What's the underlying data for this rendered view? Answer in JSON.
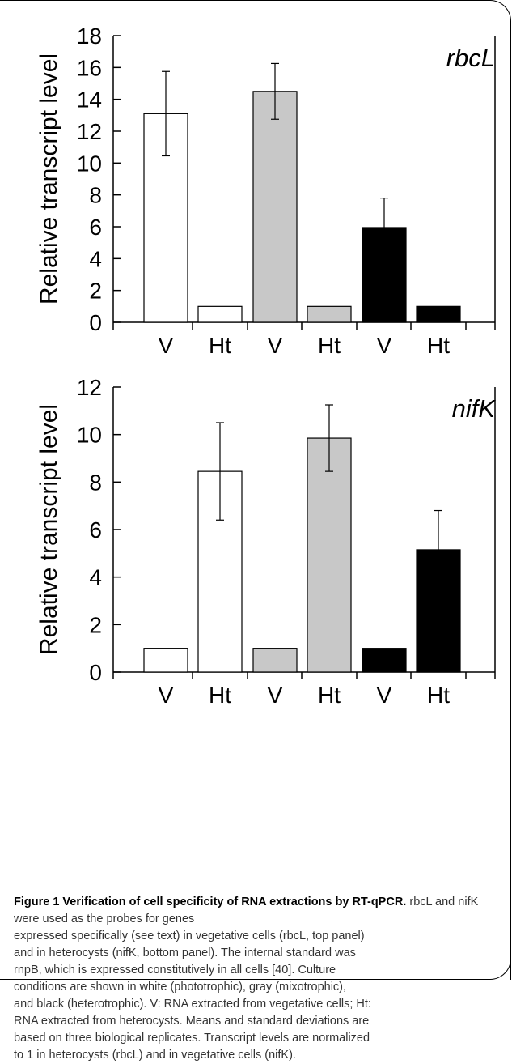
{
  "chart_data": [
    {
      "type": "bar",
      "panel_label": "rbcL",
      "ylabel": "Relative transcript level",
      "ylim": [
        0,
        18
      ],
      "yticks": [
        0,
        2,
        4,
        6,
        8,
        10,
        12,
        14,
        16,
        18
      ],
      "categories": [
        "V",
        "Ht",
        "V",
        "Ht",
        "V",
        "Ht"
      ],
      "values": [
        13.1,
        1.0,
        14.5,
        1.0,
        5.95,
        1.0
      ],
      "errors": [
        2.65,
        null,
        1.75,
        null,
        1.85,
        null
      ],
      "bar_colors": [
        "#ffffff",
        "#ffffff",
        "#c8c8c8",
        "#c8c8c8",
        "#000000",
        "#000000"
      ]
    },
    {
      "type": "bar",
      "panel_label": "nifK",
      "ylabel": "Relative transcript level",
      "ylim": [
        0,
        12
      ],
      "yticks": [
        0,
        2,
        4,
        6,
        8,
        10,
        12
      ],
      "categories": [
        "V",
        "Ht",
        "V",
        "Ht",
        "V",
        "Ht"
      ],
      "values": [
        1.0,
        8.45,
        1.0,
        9.85,
        1.0,
        5.15
      ],
      "errors": [
        null,
        2.05,
        null,
        1.4,
        null,
        1.65
      ],
      "bar_colors": [
        "#ffffff",
        "#ffffff",
        "#c8c8c8",
        "#c8c8c8",
        "#000000",
        "#000000"
      ]
    }
  ],
  "caption": {
    "title": "Figure 1 Verification of cell specificity of RNA extractions by RT-qPCR.",
    "lines": [
      "rbcL and nifK were used as the probes for genes",
      "expressed specifically (see text) in vegetative cells (rbcL, top panel)",
      "and in heterocysts (nifK, bottom panel). The internal standard was",
      "rnpB, which is expressed constitutively in all cells [40]. Culture",
      "conditions are shown in white (phototrophic), gray (mixotrophic),",
      "and black (heterotrophic). V: RNA extracted from vegetative cells; Ht:",
      "RNA extracted from heterocysts. Means and standard deviations are",
      "based on three biological replicates. Transcript levels are normalized",
      "to 1 in heterocysts (rbcL) and in vegetative cells (nifK)."
    ]
  }
}
